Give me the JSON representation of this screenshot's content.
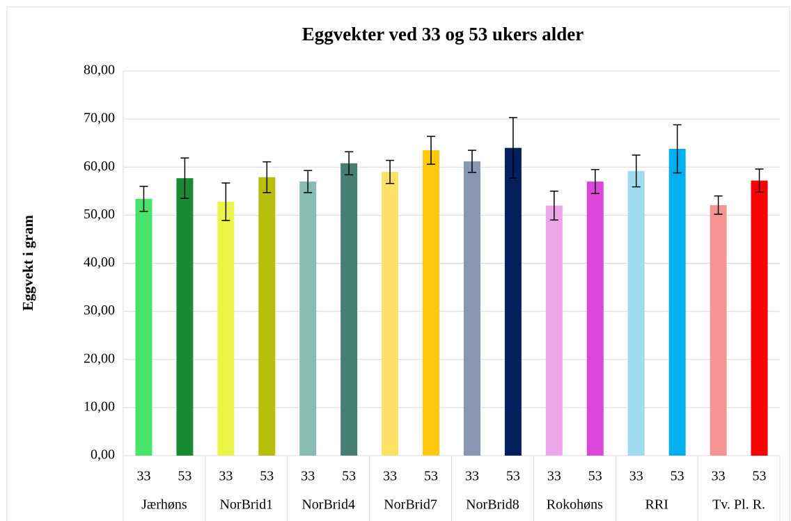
{
  "chart_data": {
    "type": "bar",
    "title": "Eggvekter ved 33 og 53 ukers alder",
    "y_label": "Eggvekt i gram",
    "groups": [
      "Jærhøns",
      "NorBrid1",
      "NorBrid4",
      "NorBrid7",
      "NorBrid8",
      "Rokohøns",
      "RRI",
      "Tv. Pl. R."
    ],
    "categories": [
      "33",
      "53",
      "33",
      "53",
      "33",
      "53",
      "33",
      "53",
      "33",
      "53",
      "33",
      "53",
      "33",
      "53",
      "33",
      "53"
    ],
    "values": [
      53.4,
      57.7,
      52.8,
      57.9,
      57.0,
      60.8,
      59.0,
      63.5,
      61.2,
      64.0,
      52.0,
      57.0,
      59.2,
      63.8,
      52.1,
      57.2
    ],
    "errors": [
      2.6,
      4.2,
      3.9,
      3.2,
      2.3,
      2.4,
      2.4,
      2.9,
      2.3,
      6.3,
      3.0,
      2.5,
      3.3,
      5.0,
      1.9,
      2.4
    ],
    "colors": [
      "#47e36a",
      "#1a8a35",
      "#eef54a",
      "#b9bd0c",
      "#86bcb2",
      "#467e72",
      "#ffe066",
      "#ffc90a",
      "#8a97b4",
      "#04205e",
      "#eea6ea",
      "#dd47d9",
      "#9fdcef",
      "#00b0f0",
      "#f49494",
      "#ff0000"
    ],
    "ylim": [
      0,
      80
    ],
    "yticks": [
      {
        "value": 0,
        "label": "0,00"
      },
      {
        "value": 10,
        "label": "10,00"
      },
      {
        "value": 20,
        "label": "20,00"
      },
      {
        "value": 30,
        "label": "30,00"
      },
      {
        "value": 40,
        "label": "40,00"
      },
      {
        "value": 50,
        "label": "50,00"
      },
      {
        "value": 60,
        "label": "60,00"
      },
      {
        "value": 70,
        "label": "70,00"
      },
      {
        "value": 80,
        "label": "80,00"
      }
    ],
    "grid": true
  }
}
